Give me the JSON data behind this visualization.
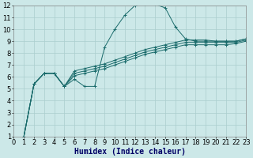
{
  "background_color": "#cce8e8",
  "grid_color": "#aacece",
  "line_color": "#1a6b6b",
  "xlabel": "Humidex (Indice chaleur)",
  "xlabel_fontsize": 7,
  "tick_fontsize": 6,
  "ylim": [
    1,
    12
  ],
  "xlim": [
    0,
    23
  ],
  "yticks": [
    1,
    2,
    3,
    4,
    5,
    6,
    7,
    8,
    9,
    10,
    11,
    12
  ],
  "xticks": [
    0,
    1,
    2,
    3,
    4,
    5,
    6,
    7,
    8,
    9,
    10,
    11,
    12,
    13,
    14,
    15,
    16,
    17,
    18,
    19,
    20,
    21,
    22,
    23
  ],
  "curve1_x": [
    1,
    2,
    3,
    4,
    5,
    6,
    7,
    8,
    9,
    10,
    11,
    12,
    13,
    14,
    15,
    16,
    17,
    18,
    19,
    20,
    21,
    22,
    23
  ],
  "curve1_y": [
    1.0,
    5.4,
    6.3,
    6.3,
    5.2,
    5.8,
    5.2,
    5.2,
    8.5,
    10.0,
    11.2,
    12.0,
    12.1,
    12.1,
    11.8,
    10.2,
    9.2,
    9.0,
    9.0,
    9.0,
    9.0,
    9.0,
    9.2
  ],
  "curve2_x": [
    1,
    2,
    3,
    4,
    5,
    6,
    7,
    8,
    9,
    10,
    11,
    12,
    13,
    14,
    15,
    16,
    17,
    18,
    19,
    20,
    21,
    22,
    23
  ],
  "curve2_y": [
    1.0,
    5.4,
    6.3,
    6.3,
    5.2,
    6.5,
    6.7,
    6.9,
    7.1,
    7.4,
    7.7,
    8.0,
    8.3,
    8.5,
    8.7,
    8.9,
    9.1,
    9.1,
    9.1,
    9.0,
    9.0,
    9.0,
    9.2
  ],
  "curve3_x": [
    1,
    2,
    3,
    4,
    5,
    6,
    7,
    8,
    9,
    10,
    11,
    12,
    13,
    14,
    15,
    16,
    17,
    18,
    19,
    20,
    21,
    22,
    23
  ],
  "curve3_y": [
    1.0,
    5.4,
    6.3,
    6.3,
    5.2,
    6.3,
    6.5,
    6.7,
    6.9,
    7.2,
    7.5,
    7.8,
    8.1,
    8.3,
    8.5,
    8.7,
    8.9,
    8.9,
    8.9,
    8.9,
    8.9,
    8.9,
    9.1
  ],
  "curve4_x": [
    1,
    2,
    3,
    4,
    5,
    6,
    7,
    8,
    9,
    10,
    11,
    12,
    13,
    14,
    15,
    16,
    17,
    18,
    19,
    20,
    21,
    22,
    23
  ],
  "curve4_y": [
    1.0,
    5.4,
    6.3,
    6.3,
    5.2,
    6.1,
    6.3,
    6.5,
    6.7,
    7.0,
    7.3,
    7.6,
    7.9,
    8.1,
    8.3,
    8.5,
    8.7,
    8.7,
    8.7,
    8.7,
    8.7,
    8.8,
    9.0
  ]
}
